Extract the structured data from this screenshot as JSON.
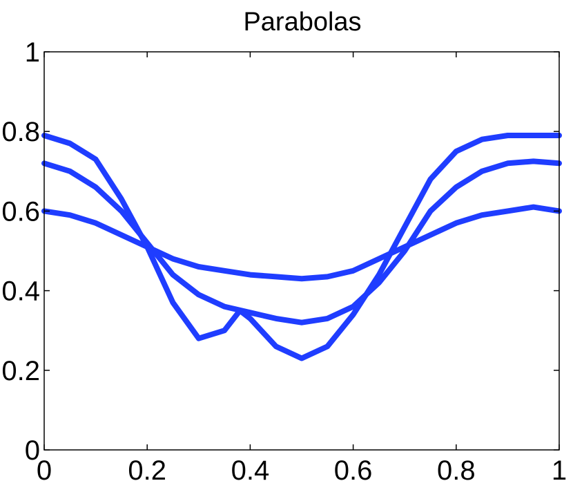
{
  "chart_data": {
    "type": "line",
    "title": "Parabolas",
    "xlabel": "",
    "ylabel": "",
    "xlim": [
      0,
      1
    ],
    "ylim": [
      0,
      1
    ],
    "xticks": [
      "0",
      "0.2",
      "0.4",
      "0.6",
      "0.8",
      "1"
    ],
    "yticks": [
      "0",
      "0.2",
      "0.4",
      "0.6",
      "0.8",
      "1"
    ],
    "grid": false,
    "legend": "none",
    "line_color": "#1f3dff",
    "series": [
      {
        "x": [
          0,
          0.05,
          0.1,
          0.15,
          0.2,
          0.25,
          0.3,
          0.35,
          0.4,
          0.45,
          0.5,
          0.55,
          0.6,
          0.65,
          0.7,
          0.75,
          0.8,
          0.85,
          0.9,
          0.95,
          1
        ],
        "values": [
          0.6,
          0.59,
          0.57,
          0.54,
          0.51,
          0.48,
          0.46,
          0.45,
          0.44,
          0.435,
          0.43,
          0.435,
          0.45,
          0.48,
          0.51,
          0.54,
          0.57,
          0.59,
          0.6,
          0.61,
          0.6
        ]
      },
      {
        "x": [
          0,
          0.05,
          0.1,
          0.15,
          0.2,
          0.25,
          0.3,
          0.35,
          0.4,
          0.45,
          0.5,
          0.55,
          0.6,
          0.65,
          0.7,
          0.75,
          0.8,
          0.85,
          0.9,
          0.95,
          1
        ],
        "values": [
          0.72,
          0.7,
          0.66,
          0.6,
          0.52,
          0.44,
          0.39,
          0.36,
          0.345,
          0.33,
          0.32,
          0.33,
          0.36,
          0.42,
          0.5,
          0.6,
          0.66,
          0.7,
          0.72,
          0.725,
          0.72
        ]
      },
      {
        "x": [
          0,
          0.05,
          0.1,
          0.15,
          0.2,
          0.25,
          0.3,
          0.35,
          0.38,
          0.4,
          0.45,
          0.5,
          0.55,
          0.6,
          0.65,
          0.7,
          0.75,
          0.8,
          0.85,
          0.9,
          0.95,
          1
        ],
        "values": [
          0.79,
          0.77,
          0.73,
          0.63,
          0.51,
          0.37,
          0.28,
          0.3,
          0.35,
          0.33,
          0.26,
          0.23,
          0.26,
          0.34,
          0.44,
          0.56,
          0.68,
          0.75,
          0.78,
          0.79,
          0.79,
          0.79
        ]
      }
    ]
  }
}
